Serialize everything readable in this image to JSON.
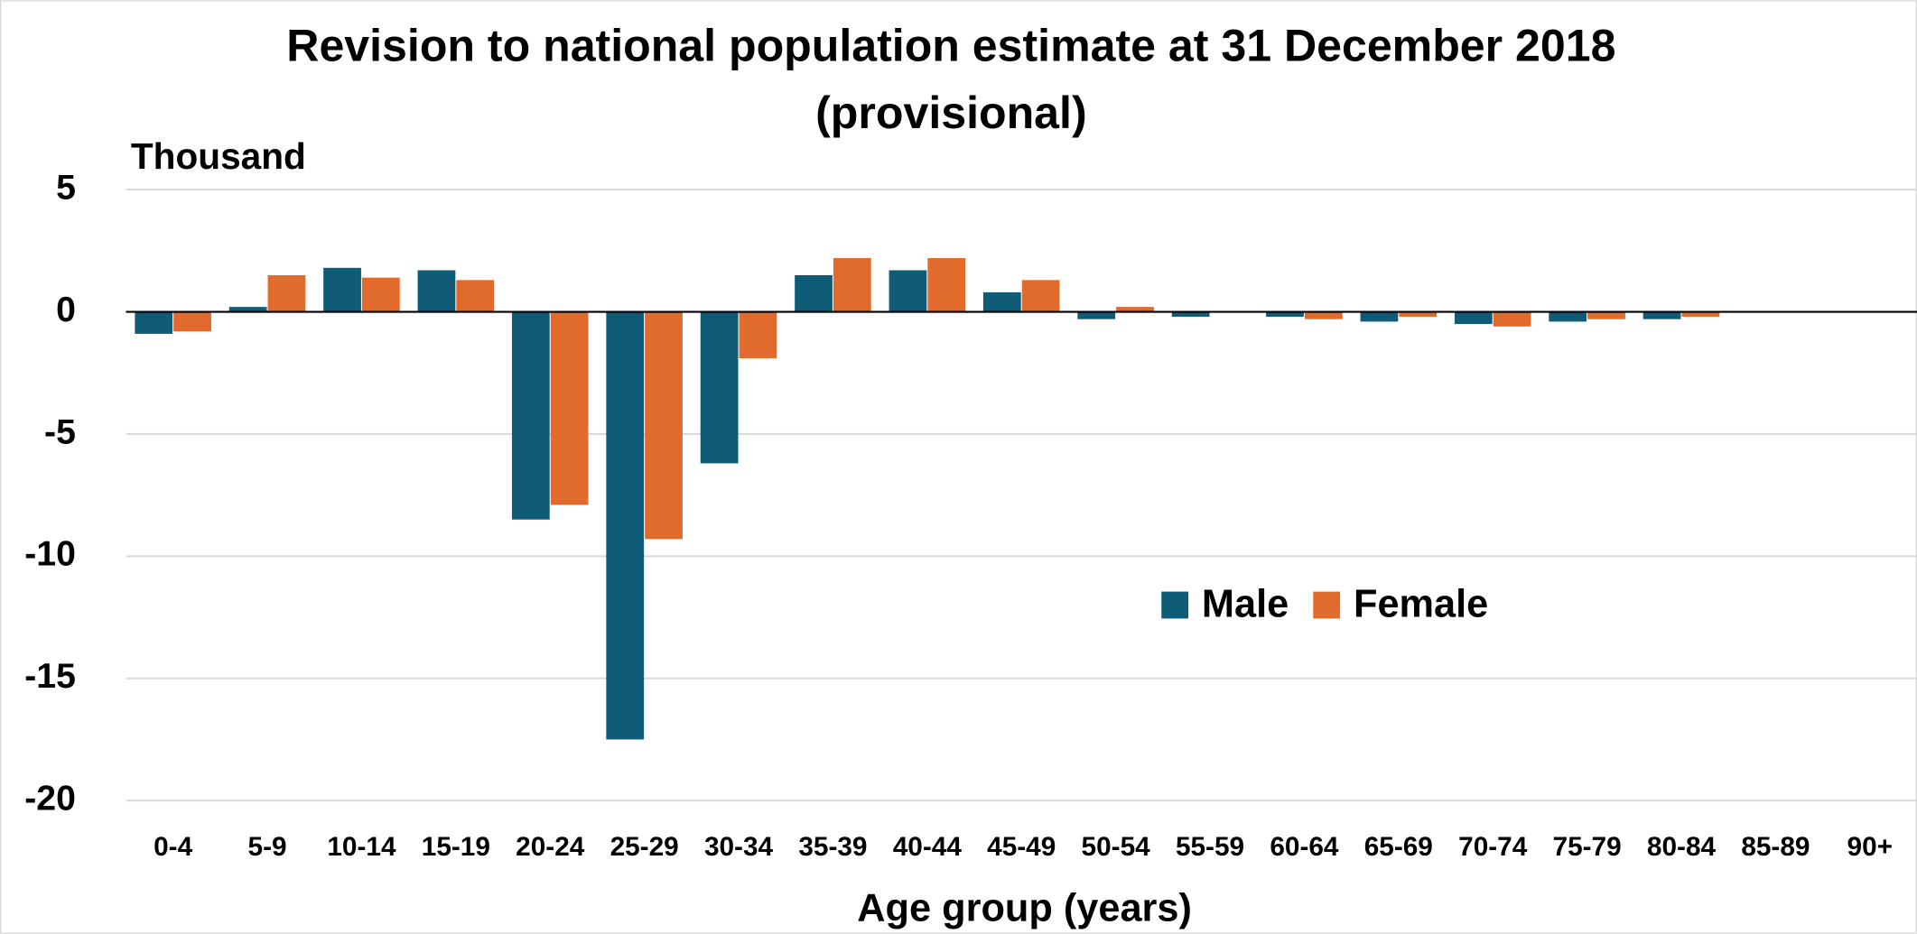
{
  "chart_data": {
    "type": "bar",
    "title": [
      "Revision to national population estimate at 31 December 2018",
      "(provisional)"
    ],
    "y_label": "Thousand",
    "x_label": "Age group (years)",
    "categories": [
      "0-4",
      "5-9",
      "10-14",
      "15-19",
      "20-24",
      "25-29",
      "30-34",
      "35-39",
      "40-44",
      "45-49",
      "50-54",
      "55-59",
      "60-64",
      "65-69",
      "70-74",
      "75-79",
      "80-84",
      "85-89",
      "90+"
    ],
    "series": [
      {
        "name": "Male",
        "color": "#0e5c78",
        "values": [
          -0.9,
          0.2,
          1.8,
          1.7,
          -8.5,
          -17.5,
          -6.2,
          1.5,
          1.7,
          0.8,
          -0.3,
          -0.2,
          -0.2,
          -0.4,
          -0.5,
          -0.4,
          -0.3,
          0,
          0
        ]
      },
      {
        "name": "Female",
        "color": "#e06b2c",
        "values": [
          -0.8,
          1.5,
          1.4,
          1.3,
          -7.9,
          -9.3,
          -1.9,
          2.2,
          2.2,
          1.3,
          0.2,
          0,
          -0.3,
          -0.2,
          -0.6,
          -0.3,
          -0.2,
          0,
          0
        ]
      }
    ],
    "ylim": [
      -20,
      5
    ],
    "yticks": [
      5,
      0,
      -5,
      -10,
      -15,
      -20
    ],
    "grid": true
  }
}
